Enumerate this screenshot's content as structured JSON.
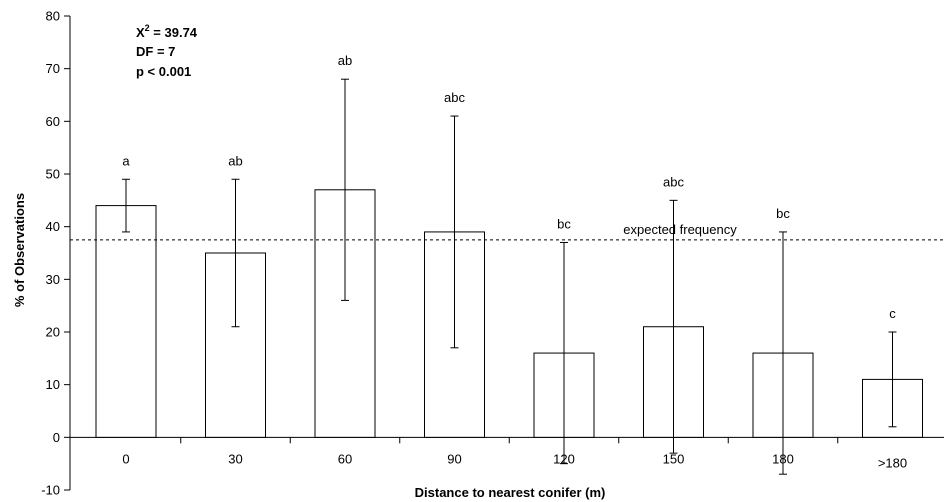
{
  "chart_data": {
    "type": "bar",
    "categories": [
      "0",
      "30",
      "60",
      "90",
      "120",
      "150",
      "180",
      ">180"
    ],
    "values": [
      44,
      35,
      47,
      39,
      16,
      21,
      16,
      11
    ],
    "error_bars": [
      {
        "low": 39,
        "high": 49
      },
      {
        "low": 21,
        "high": 49
      },
      {
        "low": 26,
        "high": 68
      },
      {
        "low": 17,
        "high": 61
      },
      {
        "low": -5,
        "high": 37
      },
      {
        "low": -3,
        "high": 45
      },
      {
        "low": -7,
        "high": 39
      },
      {
        "low": 2,
        "high": 20
      }
    ],
    "significance_labels": [
      "a",
      "ab",
      "ab",
      "abc",
      "bc",
      "abc",
      "bc",
      "c"
    ],
    "xlabel": "Distance to nearest conifer (m)",
    "ylabel": "% of Observations",
    "ylim": [
      -10,
      80
    ],
    "yticks": [
      -10,
      0,
      10,
      20,
      30,
      40,
      50,
      60,
      70,
      80
    ],
    "reference_line": {
      "value": 37.5,
      "label": "expected frequency"
    },
    "stats": {
      "chi_label": "X",
      "chi_sup": "2",
      "chi_value": " = 39.74",
      "df": "DF = 7",
      "p": "p < 0.001"
    },
    "bar_fill": "#ffffff",
    "bar_stroke": "#000000",
    "grid": false
  }
}
